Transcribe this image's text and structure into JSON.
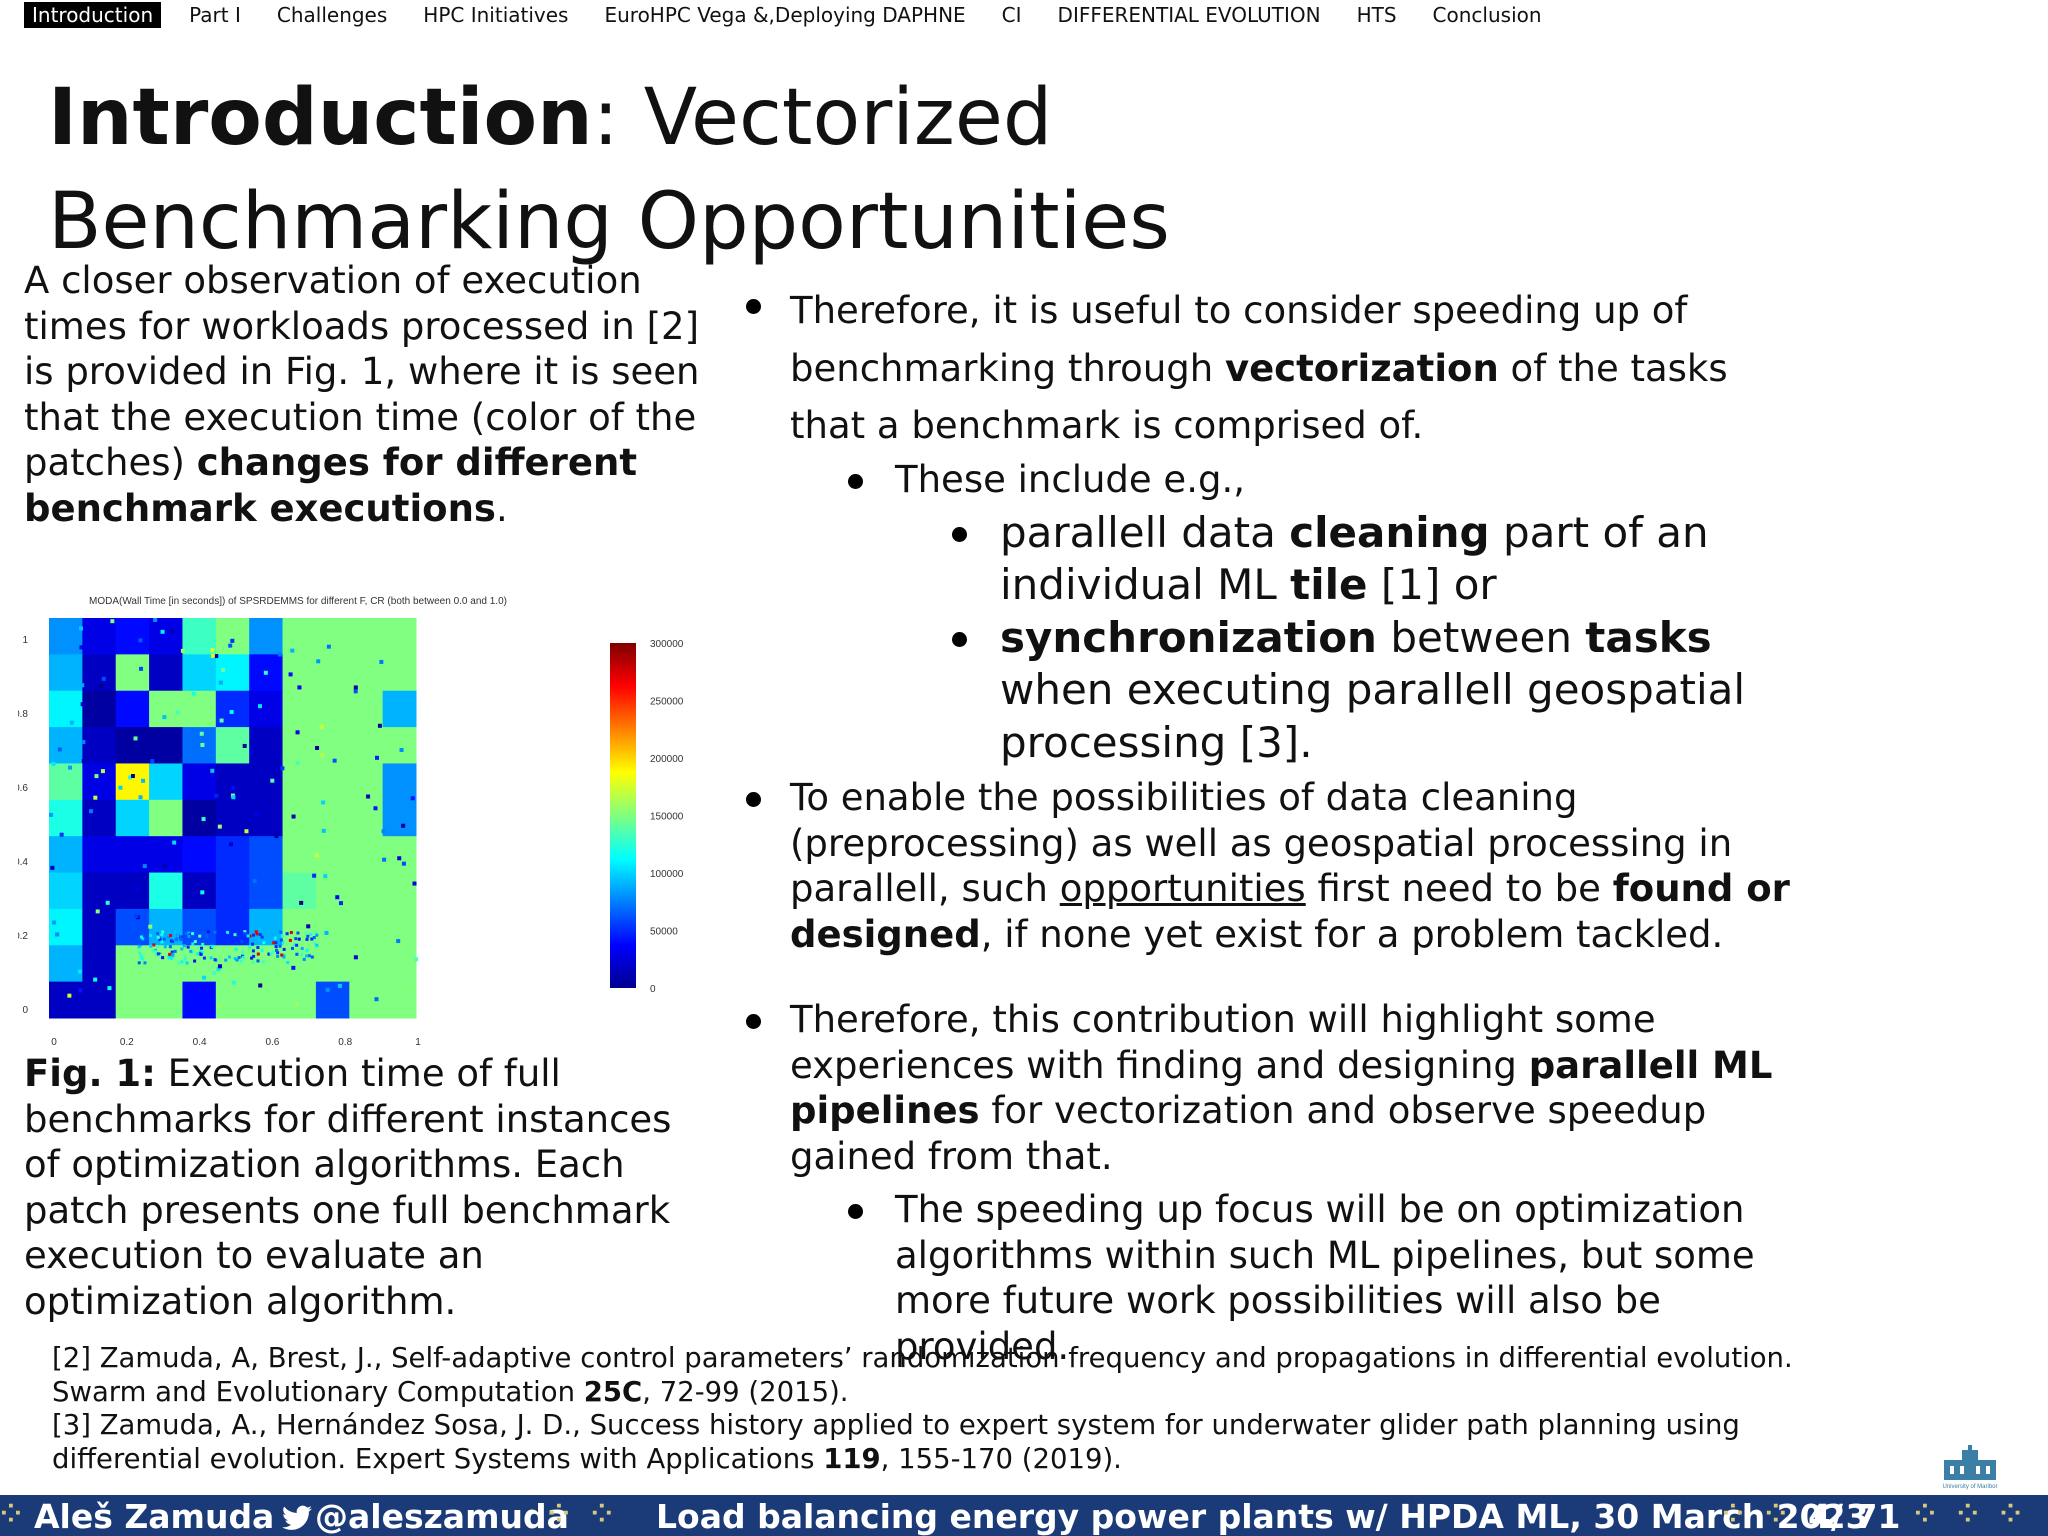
{
  "nav": [
    "Introduction",
    "Part I",
    "Challenges",
    "HPC Initiatives",
    "EuroHPC Vega &,Deploying DAPHNE",
    "CI",
    "DIFFERENTIAL EVOLUTION",
    "HTS",
    "Conclusion"
  ],
  "title": {
    "bold": "Introduction",
    "rest": ": Vectorized Benchmarking Opportunities"
  },
  "intro": {
    "text": "A closer observation of execution times for workloads processed in [2] is provided in Fig. 1, where it is seen that the execution time (color of the patches) ",
    "bold": "changes for different benchmark executions",
    "end": "."
  },
  "chart_data": {
    "type": "heatmap",
    "title": "MODA(Wall Time [in seconds]) of SPSRDEMMS for different F, CR (both between 0.0 and 1.0)",
    "xlim": [
      0,
      1
    ],
    "ylim": [
      0,
      1
    ],
    "x_ticks": [
      "0",
      "0.2",
      "0.4",
      "0.6",
      "0.8",
      "1"
    ],
    "y_ticks": [
      "0",
      "0.2",
      "0.4",
      "0.6",
      "0.8",
      "1"
    ],
    "colorbar": {
      "min": 0,
      "max": 300000,
      "ticks": [
        "0",
        "50000",
        "100000",
        "150000",
        "200000",
        "250000",
        "300000"
      ],
      "colormap": "jet"
    },
    "cells_y_top_to_bottom": [
      [
        80000,
        30000,
        40000,
        30000,
        130000,
        150000,
        80000,
        150000,
        150000,
        150000,
        150000
      ],
      [
        90000,
        20000,
        150000,
        20000,
        100000,
        110000,
        40000,
        150000,
        150000,
        150000,
        150000
      ],
      [
        110000,
        10000,
        40000,
        150000,
        150000,
        50000,
        30000,
        150000,
        150000,
        150000,
        90000
      ],
      [
        90000,
        20000,
        10000,
        10000,
        70000,
        140000,
        20000,
        150000,
        150000,
        150000,
        150000
      ],
      [
        140000,
        30000,
        190000,
        100000,
        30000,
        20000,
        20000,
        150000,
        150000,
        150000,
        80000
      ],
      [
        120000,
        20000,
        100000,
        150000,
        10000,
        20000,
        20000,
        150000,
        150000,
        150000,
        80000
      ],
      [
        90000,
        30000,
        30000,
        30000,
        40000,
        50000,
        60000,
        150000,
        150000,
        150000,
        150000
      ],
      [
        100000,
        20000,
        20000,
        120000,
        20000,
        50000,
        60000,
        140000,
        150000,
        150000,
        150000
      ],
      [
        110000,
        20000,
        60000,
        90000,
        60000,
        50000,
        90000,
        150000,
        150000,
        150000,
        150000
      ],
      [
        90000,
        20000,
        150000,
        150000,
        150000,
        150000,
        150000,
        150000,
        150000,
        150000,
        150000
      ],
      [
        20000,
        20000,
        150000,
        150000,
        40000,
        150000,
        150000,
        150000,
        60000,
        150000,
        150000
      ]
    ]
  },
  "caption": {
    "bold": "Fig. 1:",
    "text": " Execution time of full benchmarks for different instances of optimization algorithms. Each patch presents one full benchmark execution to evaluate an optimization algorithm."
  },
  "bullets": {
    "b1": [
      "Therefore, it is useful to consider speeding up of benchmarking through ",
      "vectorization",
      " of the tasks that a benchmark is comprised of."
    ],
    "b1a": "These include e.g.,",
    "b1a1": [
      "parallell data ",
      "cleaning",
      " part of an individual ML ",
      "tile",
      " [1] or"
    ],
    "b1a2": [
      "synchronization",
      " between ",
      "tasks",
      " when executing parallell geospatial processing [3]."
    ],
    "b2": [
      "To enable the possibilities of data cleaning (preprocessing) as well as geospatial processing in parallell, such ",
      "opportunities",
      " first need to be ",
      "found or designed",
      ", if none yet exist for a problem tackled."
    ],
    "b3": [
      "Therefore, this contribution will highlight some experiences with finding and designing ",
      "parallell ML pipelines",
      " for vectorization and observe speedup gained from that."
    ],
    "b3a": "The speeding up focus will be on optimization algorithms within such ML pipelines, but some more future work possibilities will also be provided."
  },
  "refs": {
    "r2": [
      "[2] Zamuda, A, Brest, J., Self-adaptive control parameters’ randomization frequency and propagations in differential evolution. Swarm and Evolutionary Computation ",
      "25C",
      ", 72-99 (2015)."
    ],
    "r3": [
      "[3] Zamuda, A., Hernández Sosa, J. D., Success history applied to expert system for underwater glider path planning using differential evolution. Expert Systems with Applications ",
      "119",
      ", 155-170 (2019)."
    ]
  },
  "footer": {
    "author": "Aleš Zamuda",
    "handle": "@aleszamuda",
    "talk": "Load balancing energy power plants w/ HPDA ML, 30 March 2023",
    "page": "4/ 71"
  },
  "logo_text": "University of Maribor",
  "colors": {
    "footer_bg": "#1b3a78",
    "nav_active_bg": "#000000"
  }
}
